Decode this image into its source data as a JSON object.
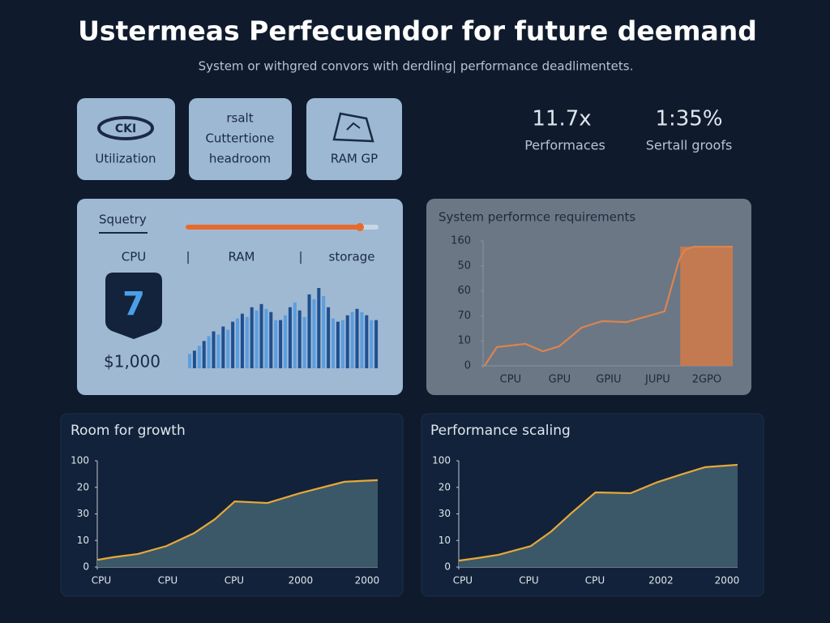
{
  "header": {
    "title": "Ustermeas Perfecuendor for future deemand",
    "subtitle": "System or withgred convors with derdling| performance deadlimentets."
  },
  "cards": [
    {
      "icon_text": "CKI",
      "lines": [
        "Utilization"
      ]
    },
    {
      "lines": [
        "rsalt",
        "Cuttertione",
        "headroom"
      ]
    },
    {
      "lines": [
        "RAM GP"
      ]
    }
  ],
  "stats": [
    {
      "value": "11.7x",
      "label": "Performaces"
    },
    {
      "value": "1:35%",
      "label": "Sertall groofs"
    }
  ],
  "usage_panel": {
    "title": "Squetry",
    "labels": [
      "CPU",
      "|",
      "RAM",
      "|",
      "storage"
    ],
    "badge": "7",
    "price": "$1,000",
    "bars": {
      "colors": [
        "#5b9ee0",
        "#1f4f8f"
      ],
      "values": [
        18,
        22,
        28,
        34,
        40,
        46,
        42,
        52,
        48,
        58,
        62,
        68,
        64,
        76,
        72,
        80,
        74,
        70,
        60,
        60,
        66,
        76,
        82,
        72,
        64,
        92,
        86,
        100,
        90,
        76,
        62,
        58,
        60,
        66,
        70,
        74,
        70,
        66,
        60,
        60
      ]
    }
  },
  "chart_data": [
    {
      "type": "line",
      "title": "System performce requirements",
      "categories": [
        "CPU",
        "GPU",
        "GPIU",
        "JUPU",
        "2GPO"
      ],
      "xlim": [
        -0.56,
        4.53
      ],
      "ylim": [
        0,
        5
      ],
      "yticks": [
        {
          "value": 5,
          "label": "160"
        },
        {
          "value": 4,
          "label": "50"
        },
        {
          "value": 3,
          "label": "60"
        },
        {
          "value": 2,
          "label": "70"
        },
        {
          "value": 1,
          "label": "10"
        },
        0
      ],
      "x": [
        -0.53,
        -0.28,
        0.3,
        0.66,
        0.99,
        1.45,
        1.87,
        2.36,
        2.78,
        3.14,
        3.44,
        3.55,
        3.74,
        4.53
      ],
      "series": [
        {
          "color": "#dc8450",
          "values": [
            0,
            0.75,
            0.88,
            0.58,
            0.78,
            1.53,
            1.79,
            1.75,
            1.98,
            2.18,
            4.25,
            4.64,
            4.77,
            4.77
          ]
        }
      ],
      "highlight": {
        "x": [
          3.46,
          4.53
        ],
        "value": 4.77,
        "color": "#c47a50"
      }
    },
    {
      "type": "area",
      "title": "Room for growth",
      "categories": [
        "CPU",
        "CPU",
        "CPU",
        "2000",
        "2000"
      ],
      "xlim": [
        -0.06,
        4.16
      ],
      "ylim": [
        0,
        4
      ],
      "yticks": [
        {
          "value": 4,
          "label": "100"
        },
        {
          "value": 3,
          "label": "20"
        },
        {
          "value": 2,
          "label": "30"
        },
        {
          "value": 1,
          "label": "10"
        },
        0
      ],
      "x": [
        -0.06,
        0.18,
        0.55,
        0.98,
        1.4,
        1.71,
        2.01,
        2.5,
        2.99,
        3.66,
        4.16
      ],
      "series": [
        {
          "color": "#e8a838",
          "fill": "#3a5868",
          "values": [
            0.27,
            0.37,
            0.49,
            0.79,
            1.28,
            1.8,
            2.47,
            2.41,
            2.78,
            3.21,
            3.27
          ]
        }
      ]
    },
    {
      "type": "area",
      "title": "Performance scaling",
      "categories": [
        "CPU",
        "CPU",
        "CPU",
        "2002",
        "2000"
      ],
      "xlim": [
        -0.06,
        4.16
      ],
      "ylim": [
        0,
        4
      ],
      "yticks": [
        {
          "value": 4,
          "label": "100"
        },
        {
          "value": 3,
          "label": "20"
        },
        {
          "value": 2,
          "label": "30"
        },
        {
          "value": 1,
          "label": "10"
        },
        0
      ],
      "x": [
        -0.06,
        0.23,
        0.54,
        1.03,
        1.34,
        1.64,
        2.01,
        2.54,
        2.93,
        3.3,
        3.67,
        4.16
      ],
      "series": [
        {
          "color": "#e8a838",
          "fill": "#3a5868",
          "values": [
            0.24,
            0.34,
            0.46,
            0.79,
            1.34,
            2.02,
            2.81,
            2.78,
            3.18,
            3.48,
            3.76,
            3.85
          ]
        }
      ]
    }
  ]
}
